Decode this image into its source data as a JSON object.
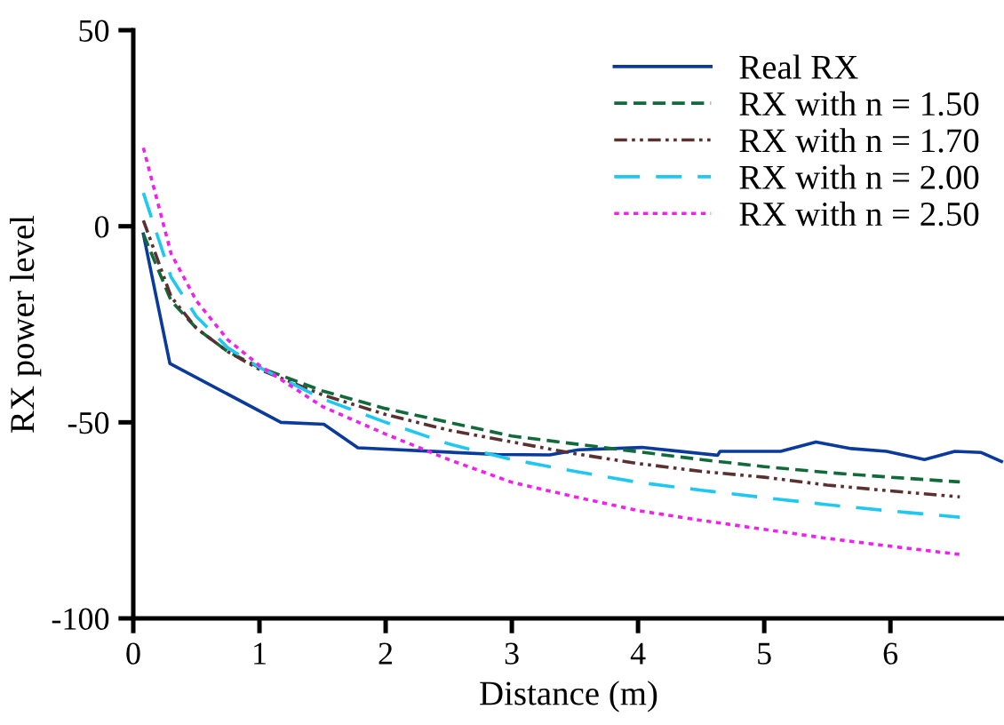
{
  "chart_data": {
    "type": "line",
    "xlabel": "Distance (m)",
    "ylabel": "RX power level",
    "xlim": [
      0,
      6.9
    ],
    "ylim": [
      -100,
      50
    ],
    "xticks": [
      0,
      1,
      2,
      3,
      4,
      5,
      6
    ],
    "yticks": [
      -100,
      -50,
      0,
      50
    ],
    "grid": false,
    "legend": "top right",
    "marker": "none",
    "series": [
      {
        "name": "Real RX",
        "color": "#0a3a9c",
        "line_style": "solid",
        "x": [
          0.08,
          0.29,
          1.17,
          1.51,
          1.78,
          2.88,
          3.3,
          3.53,
          4.03,
          4.63,
          4.65,
          5.13,
          5.41,
          5.69,
          5.97,
          6.27,
          6.51,
          6.72,
          6.88
        ],
        "values": [
          -2,
          -35,
          -50,
          -50.5,
          -56.5,
          -58.2,
          -58.3,
          -57,
          -56.4,
          -58.4,
          -57.4,
          -57.4,
          -55,
          -56.7,
          -57.4,
          -59.5,
          -57.4,
          -57.7,
          -60
        ]
      },
      {
        "name": "RX with n = 1.50",
        "color": "#106a3a",
        "line_style": "dashed",
        "x": [
          0.08,
          0.3,
          0.5,
          0.75,
          1,
          1.5,
          2,
          2.5,
          3,
          3.5,
          4,
          4.5,
          5,
          5.5,
          6,
          6.55
        ],
        "values": [
          -2,
          -19,
          -26,
          -32,
          -36,
          -42,
          -46.5,
          -50,
          -53.5,
          -55.5,
          -57.5,
          -59.5,
          -61.3,
          -62.8,
          -64,
          -65.2
        ]
      },
      {
        "name": "RX with n = 1.70",
        "color": "#5a3030",
        "line_style": "dashdotdot",
        "x": [
          0.08,
          0.3,
          0.5,
          0.75,
          1,
          1.5,
          2,
          2.5,
          3,
          3.5,
          4,
          4.5,
          5,
          5.5,
          6,
          6.55
        ],
        "values": [
          1.5,
          -18,
          -26,
          -32,
          -36.5,
          -43,
          -48,
          -52,
          -55,
          -58,
          -60.5,
          -62.5,
          -64,
          -66,
          -67.5,
          -69
        ]
      },
      {
        "name": "RX with n = 2.00",
        "color": "#1ec8f0",
        "line_style": "longdash",
        "x": [
          0.08,
          0.3,
          0.5,
          0.75,
          1,
          1.5,
          2,
          2.5,
          3,
          3.5,
          4,
          4.5,
          5,
          5.5,
          6,
          6.55
        ],
        "values": [
          8.5,
          -13,
          -23,
          -31,
          -36,
          -44,
          -50,
          -55.5,
          -59.5,
          -62.5,
          -65.3,
          -67.3,
          -69.2,
          -71,
          -72.6,
          -74.2
        ]
      },
      {
        "name": "RX with n = 2.50",
        "color": "#f020f0",
        "line_style": "dotted",
        "x": [
          0.08,
          0.3,
          0.5,
          0.75,
          1,
          1.5,
          2,
          2.5,
          3,
          3.5,
          4,
          4.5,
          5,
          5.5,
          6,
          6.55
        ],
        "values": [
          20,
          -7,
          -19,
          -29,
          -35.5,
          -46,
          -53,
          -59.5,
          -65.3,
          -69,
          -72.5,
          -75,
          -77.3,
          -79.6,
          -81.6,
          -83.7
        ]
      }
    ]
  }
}
